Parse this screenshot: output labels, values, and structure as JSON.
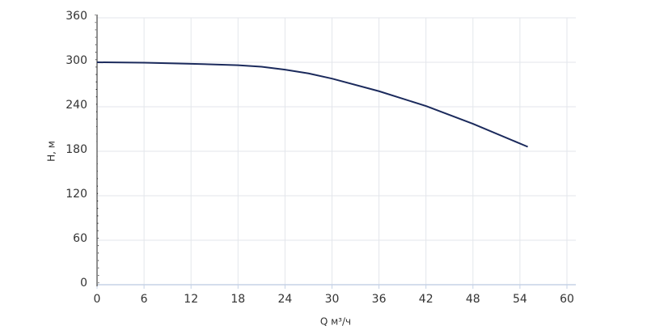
{
  "chart_data": {
    "type": "line",
    "x_label": "Q м³/ч",
    "y_label": "H, м",
    "x": [
      0,
      6,
      12,
      18,
      21,
      24,
      27,
      30,
      36,
      42,
      48,
      55
    ],
    "series": [
      {
        "color": "#1b2a5c",
        "values": [
          300,
          299.5,
          298,
          296,
          294,
          290,
          285,
          278,
          261,
          241,
          217,
          186
        ]
      }
    ],
    "xlim": [
      0,
      60
    ],
    "xticks": [
      0,
      6,
      12,
      18,
      24,
      30,
      36,
      42,
      48,
      54,
      60
    ],
    "ylim": [
      0,
      360
    ],
    "yticks": [
      0,
      60,
      120,
      180,
      240,
      300,
      360
    ],
    "grid": true
  }
}
